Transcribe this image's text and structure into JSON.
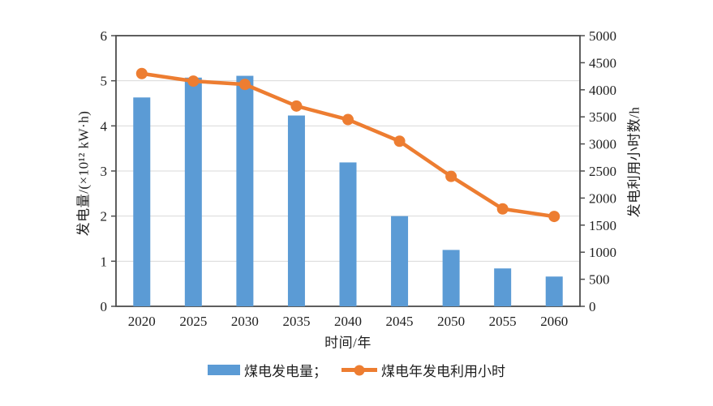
{
  "chart_data": {
    "type": "combo-bar-line",
    "categories": [
      "2020",
      "2025",
      "2030",
      "2035",
      "2040",
      "2045",
      "2050",
      "2055",
      "2060"
    ],
    "series": [
      {
        "name": "coal-power-generation",
        "label": "煤电发电量；",
        "chart_type": "bar",
        "axis": "left",
        "color": "#5B9BD5",
        "values": [
          4.63,
          5.07,
          5.11,
          4.23,
          3.19,
          2.0,
          1.25,
          0.84,
          0.66
        ]
      },
      {
        "name": "coal-power-annual-utilization-hours",
        "label": "煤电年发电利用小时",
        "chart_type": "line",
        "axis": "right",
        "color": "#ED7D31",
        "values": [
          4300,
          4160,
          4100,
          3700,
          3450,
          3050,
          2400,
          1800,
          1660
        ]
      }
    ],
    "xlabel": "时间/年",
    "left_axis": {
      "label": "发电量/(×10¹² kW·h)",
      "min": 0,
      "max": 6,
      "ticks": [
        0,
        1,
        2,
        3,
        4,
        5,
        6
      ]
    },
    "right_axis": {
      "label": "发电利用小时数/h",
      "min": 0,
      "max": 5000,
      "ticks": [
        0,
        500,
        1000,
        1500,
        2000,
        2500,
        3000,
        3500,
        4000,
        4500,
        5000
      ]
    },
    "grid": true,
    "legend_position": "bottom"
  },
  "styles": {
    "axis_color": "#4d4d4d",
    "grid_color": "#d9d9d9",
    "text_color": "#1f1f1f",
    "background": "#ffffff"
  }
}
